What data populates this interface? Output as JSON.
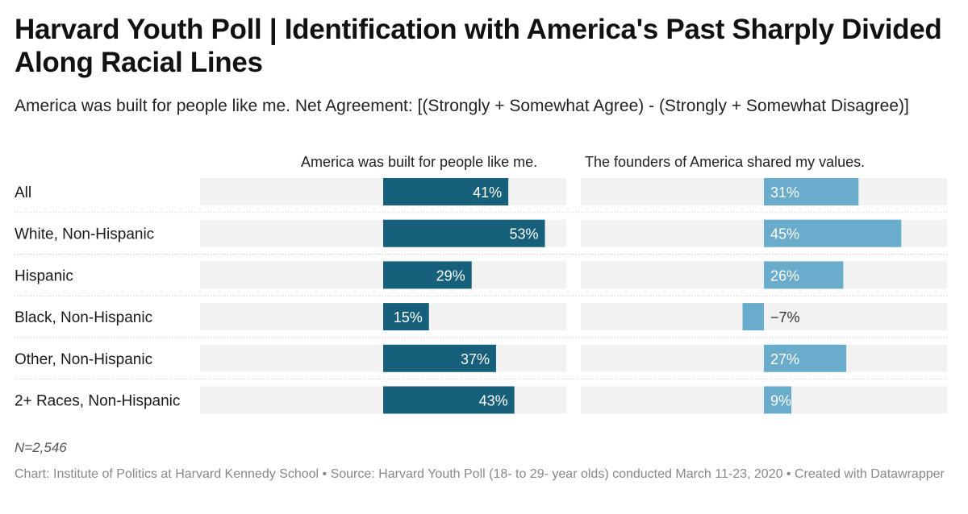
{
  "title": "Harvard Youth Poll | Identification with America's Past Sharply Divided Along Racial Lines",
  "subtitle": "America was built for people like me. Net Agreement: [(Strongly + Somewhat Agree) - (Strongly + Somewhat Disagree)]",
  "notes": "N=2,546",
  "footer": "Chart: Institute of Politics at Harvard Kennedy School • Source: Harvard Youth Poll (18- to 29- year olds) conducted March 11-23, 2020 • Created with Datawrapper",
  "chart_data": {
    "type": "bar",
    "orientation": "horizontal",
    "title": "Harvard Youth Poll | Identification with America's Past Sharply Divided Along Racial Lines",
    "categories": [
      "All",
      "White, Non-Hispanic",
      "Hispanic",
      "Black, Non-Hispanic",
      "Other, Non-Hispanic",
      "2+ Races, Non-Hispanic"
    ],
    "series": [
      {
        "name": "America was built for people like me.",
        "values": [
          41,
          53,
          29,
          15,
          37,
          43
        ],
        "labels": [
          "41%",
          "53%",
          "29%",
          "15%",
          "37%",
          "43%"
        ],
        "color": "#17607b"
      },
      {
        "name": "The founders of America shared my values.",
        "values": [
          31,
          45,
          26,
          -7,
          27,
          9
        ],
        "labels": [
          "31%",
          "45%",
          "26%",
          "−7%",
          "27%",
          "9%"
        ],
        "color": "#6aaccb"
      }
    ],
    "xlim": [
      -60,
      60
    ],
    "unit": "%",
    "background_color": "#f2f2f2",
    "label_color_inside": "#ffffff",
    "label_color_outside": "#333333"
  }
}
